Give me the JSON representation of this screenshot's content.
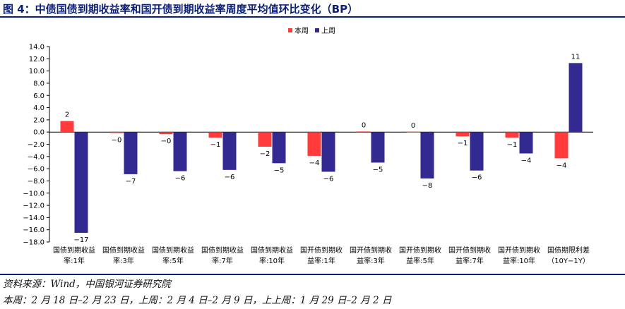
{
  "title": "图 4：中债国债到期收益率和国开债到期收益率周度平均值环比变化（BP）",
  "source": "资料来源：Wind，中国银河证券研究院",
  "note": "本周：2 月 18 日–2 月 23 日，上周：2 月 4 日–2 月 9 日，上上周：1 月 29 日–2 月 2 日",
  "colors": {
    "this_week": "#ff3b3b",
    "last_week": "#332a91",
    "rule": "#0a1f7a"
  },
  "chart_data": {
    "type": "bar",
    "categories": [
      [
        "国债到期收益",
        "率:1年"
      ],
      [
        "国债到期收益",
        "率:3年"
      ],
      [
        "国债到期收益",
        "率:5年"
      ],
      [
        "国债到期收益",
        "率:7年"
      ],
      [
        "国债到期收益",
        "率:10年"
      ],
      [
        "国开债到期收",
        "益率:1年"
      ],
      [
        "国开债到期收",
        "益率:3年"
      ],
      [
        "国开债到期收",
        "益率:5年"
      ],
      [
        "国开债到期收",
        "益率:7年"
      ],
      [
        "国开债到期收",
        "益率:10年"
      ],
      [
        "国债期限利差",
        "（10Y−1Y）"
      ]
    ],
    "series": [
      {
        "name": "本周",
        "values": [
          1.8,
          -0.15,
          -0.35,
          -0.9,
          -2.4,
          -3.9,
          0.1,
          0.05,
          -0.7,
          -0.9,
          -4.3
        ],
        "labels": [
          "2",
          "−0",
          "−0",
          "−1",
          "−2",
          "−4",
          "0",
          "0",
          "−1",
          "−1",
          "−4"
        ]
      },
      {
        "name": "上周",
        "values": [
          -16.5,
          -6.9,
          -6.4,
          -6.2,
          -5.1,
          -6.5,
          -5.0,
          -7.6,
          -6.3,
          -3.5,
          11.3
        ],
        "labels": [
          "−17",
          "−7",
          "−6",
          "−6",
          "−5",
          "−6",
          "−5",
          "−8",
          "−6",
          "−4",
          "11"
        ]
      }
    ],
    "yticks": [
      "14.0",
      "12.0",
      "10.0",
      "8.0",
      "6.0",
      "4.0",
      "2.0",
      "0.0",
      "−2.0",
      "−4.0",
      "−6.0",
      "−8.0",
      "−10.0",
      "−12.0",
      "−14.0",
      "−16.0",
      "−18.0"
    ],
    "ylim": [
      -18,
      14
    ],
    "legend_position": "top-center",
    "grid": false
  }
}
